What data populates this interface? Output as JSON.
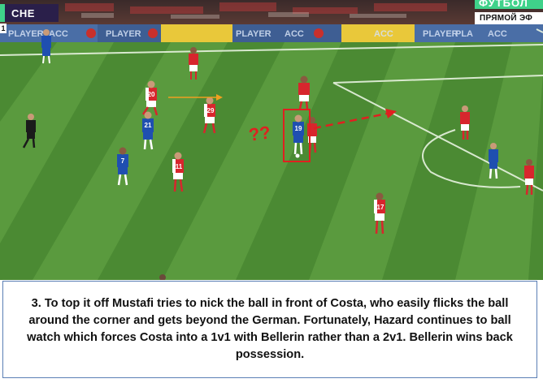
{
  "broadcast": {
    "team_abbreviation": "CHE",
    "period_marker": "1",
    "channel_logo": "ФУТБОЛ",
    "live_label": "ПРЯМОЙ ЭФ",
    "ad_boards": [
      "PLAYER",
      "PLAYER",
      "ACC",
      "ACC",
      "PLAYER",
      "ACC",
      "PLAYER",
      "ACC",
      "PLA"
    ]
  },
  "annotations": {
    "question_marks": "??",
    "highlight_color": "#e02020",
    "arrow_color": "#e02020",
    "pass_arrow_color": "#f0a020"
  },
  "players": [
    {
      "team": "arsenal",
      "number": "20"
    },
    {
      "team": "arsenal",
      "number": "29"
    },
    {
      "team": "chelsea",
      "number": "21"
    },
    {
      "team": "chelsea",
      "number": "19"
    },
    {
      "team": "chelsea",
      "number": "7"
    },
    {
      "team": "arsenal",
      "number": "11"
    },
    {
      "team": "arsenal",
      "number": "17"
    }
  ],
  "caption": {
    "text": "3. To top it off Mustafi tries to nick the ball in front of Costa, who easily flicks the ball around the corner and gets beyond the German. Fortunately, Hazard continues to ball watch which forces Costa into a 1v1 with Bellerin rather than a 2v1. Bellerin wins back possession."
  },
  "colors": {
    "pitch_light": "#5a9a3e",
    "pitch_dark": "#4b8a33",
    "arsenal_shirt": "#d7262d",
    "chelsea_shirt": "#1f4fb0",
    "caption_border": "#5b7fb5"
  }
}
